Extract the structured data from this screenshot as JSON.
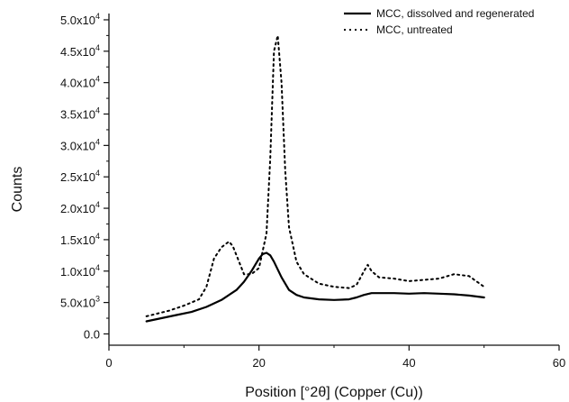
{
  "chart_data": {
    "type": "line",
    "xlabel": "Position [°2θ] (Copper (Cu))",
    "ylabel": "Counts",
    "xlim": [
      0,
      60
    ],
    "ylim": [
      -1800,
      51000
    ],
    "x_ticks": [
      0,
      20,
      40,
      60
    ],
    "y_ticks": [
      0,
      5000,
      10000,
      15000,
      20000,
      25000,
      30000,
      35000,
      40000,
      45000,
      50000
    ],
    "y_tick_labels": [
      {
        "mantissa": "0.0",
        "exp": ""
      },
      {
        "mantissa": "5.0x10",
        "exp": "3"
      },
      {
        "mantissa": "1.0x10",
        "exp": "4"
      },
      {
        "mantissa": "1.5x10",
        "exp": "4"
      },
      {
        "mantissa": "2.0x10",
        "exp": "4"
      },
      {
        "mantissa": "2.5x10",
        "exp": "4"
      },
      {
        "mantissa": "3.0x10",
        "exp": "4"
      },
      {
        "mantissa": "3.5x10",
        "exp": "4"
      },
      {
        "mantissa": "4.0x10",
        "exp": "4"
      },
      {
        "mantissa": "4.5x10",
        "exp": "4"
      },
      {
        "mantissa": "5.0x10",
        "exp": "4"
      }
    ],
    "grid": false,
    "legend_position": "top-right",
    "series": [
      {
        "name": "MCC, dissolved and regenerated",
        "style": "solid",
        "color": "#000000",
        "x": [
          5,
          7,
          9,
          11,
          13,
          15,
          17,
          18,
          19,
          20,
          20.5,
          21,
          21.5,
          22,
          23,
          24,
          25,
          26,
          28,
          30,
          32,
          33,
          34,
          35,
          38,
          40,
          42,
          44,
          46,
          48,
          50
        ],
        "y": [
          2000,
          2500,
          3000,
          3500,
          4300,
          5400,
          7000,
          8300,
          10000,
          12000,
          12700,
          12900,
          12500,
          11500,
          9000,
          7000,
          6200,
          5800,
          5500,
          5400,
          5500,
          5800,
          6200,
          6500,
          6500,
          6400,
          6500,
          6400,
          6300,
          6100,
          5800
        ]
      },
      {
        "name": "MCC, untreated",
        "style": "dotted",
        "color": "#000000",
        "x": [
          5,
          8,
          10,
          12,
          13,
          14,
          15,
          16,
          16.5,
          17,
          18,
          19,
          20,
          21,
          21.5,
          22,
          22.5,
          23,
          23.5,
          24,
          25,
          26,
          28,
          30,
          32,
          33,
          34,
          34.5,
          35,
          36,
          38,
          40,
          42,
          44,
          46,
          48,
          50
        ],
        "y": [
          2800,
          3700,
          4500,
          5500,
          7500,
          12000,
          13800,
          14700,
          14000,
          12500,
          9500,
          9500,
          10500,
          16000,
          28000,
          45000,
          47500,
          40000,
          26000,
          17000,
          11500,
          9500,
          8000,
          7500,
          7300,
          7800,
          10000,
          11000,
          10000,
          9000,
          8800,
          8400,
          8600,
          8800,
          9500,
          9200,
          7500
        ]
      }
    ]
  }
}
